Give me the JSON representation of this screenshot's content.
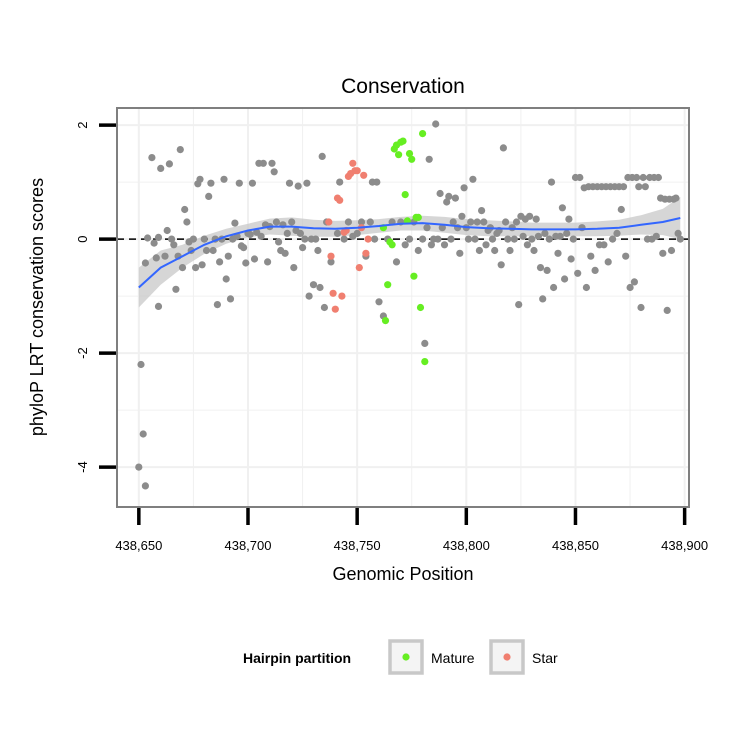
{
  "chart_data": {
    "type": "scatter",
    "title": "Conservation",
    "xlabel": "Genomic Position",
    "ylabel": "phyloP LRT conservation scores",
    "xlim": [
      438640,
      438902
    ],
    "ylim": [
      -4.7,
      2.3
    ],
    "x_ticks": [
      {
        "value": 438650,
        "label": "438,650"
      },
      {
        "value": 438700,
        "label": "438,700"
      },
      {
        "value": 438750,
        "label": "438,750"
      },
      {
        "value": 438800,
        "label": "438,800"
      },
      {
        "value": 438850,
        "label": "438,850"
      },
      {
        "value": 438900,
        "label": "438,900"
      }
    ],
    "y_ticks": [
      {
        "value": 2,
        "label": "2"
      },
      {
        "value": 0,
        "label": "0"
      },
      {
        "value": -2,
        "label": "-2"
      },
      {
        "value": -4,
        "label": "-4"
      }
    ],
    "grid": true,
    "reference_line": {
      "y": 0,
      "style": "dashed"
    },
    "legend": {
      "title": "Hairpin partition",
      "position": "bottom",
      "entries": [
        {
          "label": "Mature",
          "color": "#66ee22"
        },
        {
          "label": "Star",
          "color": "#f07f70"
        }
      ]
    },
    "colors": {
      "other": "#8c8c8c",
      "mature": "#66ee22",
      "star": "#f07f70",
      "smooth": "#3366ff",
      "band": "#c8c8c8",
      "panel_border": "#7f7f7f",
      "grid": "#f0f0f0"
    },
    "series": [
      {
        "name": "Other",
        "points": [
          [
            438650,
            -4.0
          ],
          [
            438651,
            -2.2
          ],
          [
            438652,
            -3.42
          ],
          [
            438653,
            -4.33
          ],
          [
            438653,
            -0.42
          ],
          [
            438654,
            0.02
          ],
          [
            438656,
            1.43
          ],
          [
            438657,
            -0.07
          ],
          [
            438658,
            -0.33
          ],
          [
            438659,
            -1.18
          ],
          [
            438659,
            0.03
          ],
          [
            438660,
            1.24
          ],
          [
            438662,
            -0.3
          ],
          [
            438663,
            0.15
          ],
          [
            438664,
            1.32
          ],
          [
            438665,
            0.0
          ],
          [
            438666,
            -0.1
          ],
          [
            438667,
            -0.88
          ],
          [
            438668,
            -0.3
          ],
          [
            438669,
            1.57
          ],
          [
            438670,
            -0.5
          ],
          [
            438671,
            0.52
          ],
          [
            438672,
            0.3
          ],
          [
            438673,
            -0.05
          ],
          [
            438674,
            -0.2
          ],
          [
            438675,
            0.0
          ],
          [
            438676,
            -0.5
          ],
          [
            438677,
            0.97
          ],
          [
            438678,
            1.05
          ],
          [
            438679,
            -0.45
          ],
          [
            438680,
            0.0
          ],
          [
            438681,
            -0.2
          ],
          [
            438682,
            0.75
          ],
          [
            438683,
            0.98
          ],
          [
            438684,
            -0.2
          ],
          [
            438685,
            0.0
          ],
          [
            438686,
            -1.15
          ],
          [
            438687,
            -0.4
          ],
          [
            438688,
            0.0
          ],
          [
            438689,
            1.05
          ],
          [
            438690,
            -0.7
          ],
          [
            438691,
            -0.3
          ],
          [
            438692,
            -1.05
          ],
          [
            438693,
            0.0
          ],
          [
            438694,
            0.28
          ],
          [
            438695,
            0.05
          ],
          [
            438696,
            0.98
          ],
          [
            438697,
            -0.12
          ],
          [
            438698,
            -0.15
          ],
          [
            438699,
            -0.42
          ],
          [
            438700,
            0.1
          ],
          [
            438701,
            0.08
          ],
          [
            438702,
            0.98
          ],
          [
            438703,
            -0.35
          ],
          [
            438704,
            0.12
          ],
          [
            438705,
            1.33
          ],
          [
            438706,
            0.05
          ],
          [
            438707,
            1.33
          ],
          [
            438708,
            0.25
          ],
          [
            438709,
            -0.4
          ],
          [
            438710,
            0.22
          ],
          [
            438711,
            1.33
          ],
          [
            438712,
            1.18
          ],
          [
            438713,
            0.3
          ],
          [
            438714,
            -0.05
          ],
          [
            438715,
            -0.2
          ],
          [
            438716,
            0.25
          ],
          [
            438717,
            -0.25
          ],
          [
            438718,
            0.1
          ],
          [
            438719,
            0.98
          ],
          [
            438720,
            0.3
          ],
          [
            438721,
            -0.5
          ],
          [
            438722,
            0.15
          ],
          [
            438723,
            0.93
          ],
          [
            438724,
            0.1
          ],
          [
            438725,
            -0.15
          ],
          [
            438726,
            0.0
          ],
          [
            438727,
            0.98
          ],
          [
            438728,
            -1.0
          ],
          [
            438729,
            0.0
          ],
          [
            438730,
            -0.8
          ],
          [
            438731,
            0.0
          ],
          [
            438732,
            -0.2
          ],
          [
            438733,
            -0.85
          ],
          [
            438734,
            1.45
          ],
          [
            438735,
            -1.2
          ],
          [
            438736,
            0.3
          ],
          [
            438738,
            -0.4
          ],
          [
            438741,
            0.1
          ],
          [
            438742,
            1.0
          ],
          [
            438744,
            0.0
          ],
          [
            438746,
            0.3
          ],
          [
            438748,
            0.05
          ],
          [
            438750,
            0.1
          ],
          [
            438752,
            0.3
          ],
          [
            438754,
            -0.3
          ],
          [
            438756,
            0.3
          ],
          [
            438757,
            1.0
          ],
          [
            438758,
            0.0
          ],
          [
            438759,
            1.0
          ],
          [
            438760,
            -1.1
          ],
          [
            438762,
            -1.35
          ],
          [
            438764,
            0.0
          ],
          [
            438766,
            0.3
          ],
          [
            438768,
            -0.4
          ],
          [
            438770,
            0.3
          ],
          [
            438772,
            -0.1
          ],
          [
            438774,
            0.0
          ],
          [
            438776,
            0.3
          ],
          [
            438778,
            -0.2
          ],
          [
            438780,
            0.0
          ],
          [
            438781,
            -1.83
          ],
          [
            438782,
            0.2
          ],
          [
            438783,
            1.4
          ],
          [
            438784,
            -0.1
          ],
          [
            438785,
            0.0
          ],
          [
            438786,
            2.02
          ],
          [
            438787,
            0.0
          ],
          [
            438788,
            0.8
          ],
          [
            438789,
            0.2
          ],
          [
            438790,
            -0.1
          ],
          [
            438791,
            0.65
          ],
          [
            438792,
            0.75
          ],
          [
            438793,
            0.0
          ],
          [
            438794,
            0.3
          ],
          [
            438795,
            0.72
          ],
          [
            438796,
            0.2
          ],
          [
            438797,
            -0.25
          ],
          [
            438798,
            0.4
          ],
          [
            438799,
            0.9
          ],
          [
            438800,
            0.2
          ],
          [
            438801,
            0.0
          ],
          [
            438802,
            0.3
          ],
          [
            438803,
            1.05
          ],
          [
            438804,
            0.0
          ],
          [
            438805,
            0.3
          ],
          [
            438806,
            -0.2
          ],
          [
            438807,
            0.5
          ],
          [
            438808,
            0.3
          ],
          [
            438809,
            -0.1
          ],
          [
            438810,
            0.15
          ],
          [
            438811,
            0.2
          ],
          [
            438812,
            0.0
          ],
          [
            438813,
            -0.2
          ],
          [
            438814,
            0.1
          ],
          [
            438815,
            0.15
          ],
          [
            438816,
            -0.45
          ],
          [
            438817,
            1.6
          ],
          [
            438818,
            0.3
          ],
          [
            438819,
            0.0
          ],
          [
            438820,
            -0.2
          ],
          [
            438821,
            0.2
          ],
          [
            438822,
            0.0
          ],
          [
            438823,
            0.3
          ],
          [
            438824,
            -1.15
          ],
          [
            438825,
            0.4
          ],
          [
            438826,
            0.05
          ],
          [
            438827,
            0.35
          ],
          [
            438828,
            -0.1
          ],
          [
            438829,
            0.4
          ],
          [
            438830,
            0.0
          ],
          [
            438831,
            -0.2
          ],
          [
            438832,
            0.35
          ],
          [
            438833,
            0.05
          ],
          [
            438834,
            -0.5
          ],
          [
            438835,
            -1.05
          ],
          [
            438836,
            0.1
          ],
          [
            438837,
            -0.55
          ],
          [
            438838,
            0.0
          ],
          [
            438839,
            1.0
          ],
          [
            438840,
            -0.85
          ],
          [
            438841,
            0.05
          ],
          [
            438842,
            -0.25
          ],
          [
            438843,
            0.05
          ],
          [
            438844,
            0.55
          ],
          [
            438845,
            -0.7
          ],
          [
            438846,
            0.1
          ],
          [
            438847,
            0.35
          ],
          [
            438848,
            -0.35
          ],
          [
            438849,
            0.0
          ],
          [
            438850,
            1.08
          ],
          [
            438851,
            -0.6
          ],
          [
            438852,
            1.08
          ],
          [
            438853,
            0.2
          ],
          [
            438854,
            0.9
          ],
          [
            438855,
            -0.85
          ],
          [
            438856,
            0.92
          ],
          [
            438857,
            -0.3
          ],
          [
            438858,
            0.92
          ],
          [
            438859,
            -0.55
          ],
          [
            438860,
            0.92
          ],
          [
            438861,
            -0.1
          ],
          [
            438862,
            0.92
          ],
          [
            438863,
            -0.1
          ],
          [
            438864,
            0.92
          ],
          [
            438865,
            -0.4
          ],
          [
            438866,
            0.92
          ],
          [
            438867,
            0.0
          ],
          [
            438868,
            0.92
          ],
          [
            438869,
            0.1
          ],
          [
            438870,
            0.92
          ],
          [
            438871,
            0.52
          ],
          [
            438872,
            0.92
          ],
          [
            438873,
            -0.3
          ],
          [
            438874,
            1.08
          ],
          [
            438875,
            -0.85
          ],
          [
            438876,
            1.08
          ],
          [
            438877,
            -0.75
          ],
          [
            438878,
            1.08
          ],
          [
            438879,
            0.92
          ],
          [
            438880,
            -1.2
          ],
          [
            438881,
            1.08
          ],
          [
            438882,
            0.92
          ],
          [
            438883,
            0.0
          ],
          [
            438884,
            1.08
          ],
          [
            438885,
            0.0
          ],
          [
            438886,
            1.08
          ],
          [
            438887,
            0.05
          ],
          [
            438888,
            1.08
          ],
          [
            438889,
            0.72
          ],
          [
            438890,
            -0.25
          ],
          [
            438891,
            0.7
          ],
          [
            438892,
            -1.25
          ],
          [
            438893,
            0.7
          ],
          [
            438894,
            -0.2
          ],
          [
            438895,
            0.7
          ],
          [
            438896,
            0.72
          ],
          [
            438897,
            0.1
          ],
          [
            438898,
            0.0
          ]
        ]
      },
      {
        "name": "Mature",
        "points": [
          [
            438762,
            0.2
          ],
          [
            438763,
            -1.43
          ],
          [
            438764,
            -0.8
          ],
          [
            438765,
            -0.05
          ],
          [
            438766,
            -0.1
          ],
          [
            438767,
            1.58
          ],
          [
            438768,
            1.65
          ],
          [
            438769,
            1.48
          ],
          [
            438770,
            1.7
          ],
          [
            438771,
            1.72
          ],
          [
            438772,
            0.78
          ],
          [
            438773,
            0.32
          ],
          [
            438774,
            1.5
          ],
          [
            438775,
            1.4
          ],
          [
            438776,
            -0.65
          ],
          [
            438777,
            0.38
          ],
          [
            438778,
            0.38
          ],
          [
            438779,
            -1.2
          ],
          [
            438780,
            1.85
          ],
          [
            438781,
            -2.15
          ]
        ]
      },
      {
        "name": "Star",
        "points": [
          [
            438737,
            0.3
          ],
          [
            438738,
            -0.3
          ],
          [
            438739,
            -0.95
          ],
          [
            438740,
            -1.23
          ],
          [
            438741,
            0.72
          ],
          [
            438742,
            0.68
          ],
          [
            438743,
            -1.0
          ],
          [
            438744,
            0.12
          ],
          [
            438745,
            0.15
          ],
          [
            438746,
            1.1
          ],
          [
            438747,
            1.15
          ],
          [
            438748,
            1.33
          ],
          [
            438749,
            1.2
          ],
          [
            438750,
            1.2
          ],
          [
            438751,
            -0.5
          ],
          [
            438752,
            0.2
          ],
          [
            438753,
            1.12
          ],
          [
            438754,
            -0.25
          ],
          [
            438755,
            0.0
          ]
        ]
      }
    ],
    "smooth": {
      "x": [
        438650,
        438660,
        438670,
        438680,
        438690,
        438700,
        438710,
        438720,
        438730,
        438740,
        438750,
        438760,
        438770,
        438780,
        438790,
        438800,
        438810,
        438820,
        438830,
        438840,
        438850,
        438860,
        438870,
        438880,
        438890,
        438898
      ],
      "y": [
        -0.85,
        -0.5,
        -0.3,
        -0.1,
        0.05,
        0.15,
        0.22,
        0.22,
        0.19,
        0.18,
        0.2,
        0.23,
        0.27,
        0.28,
        0.25,
        0.21,
        0.19,
        0.18,
        0.17,
        0.17,
        0.17,
        0.18,
        0.2,
        0.25,
        0.3,
        0.37
      ],
      "lower": [
        -1.2,
        -0.8,
        -0.5,
        -0.26,
        -0.08,
        0.03,
        0.08,
        0.06,
        0.04,
        0.04,
        0.07,
        0.11,
        0.15,
        0.15,
        0.11,
        0.07,
        0.05,
        0.05,
        0.05,
        0.05,
        0.05,
        0.05,
        0.06,
        0.08,
        0.07,
        0.0
      ],
      "upper": [
        -0.5,
        -0.2,
        -0.1,
        0.06,
        0.18,
        0.27,
        0.36,
        0.38,
        0.34,
        0.32,
        0.33,
        0.35,
        0.39,
        0.41,
        0.39,
        0.35,
        0.33,
        0.31,
        0.29,
        0.29,
        0.29,
        0.31,
        0.34,
        0.42,
        0.53,
        0.74
      ]
    }
  }
}
